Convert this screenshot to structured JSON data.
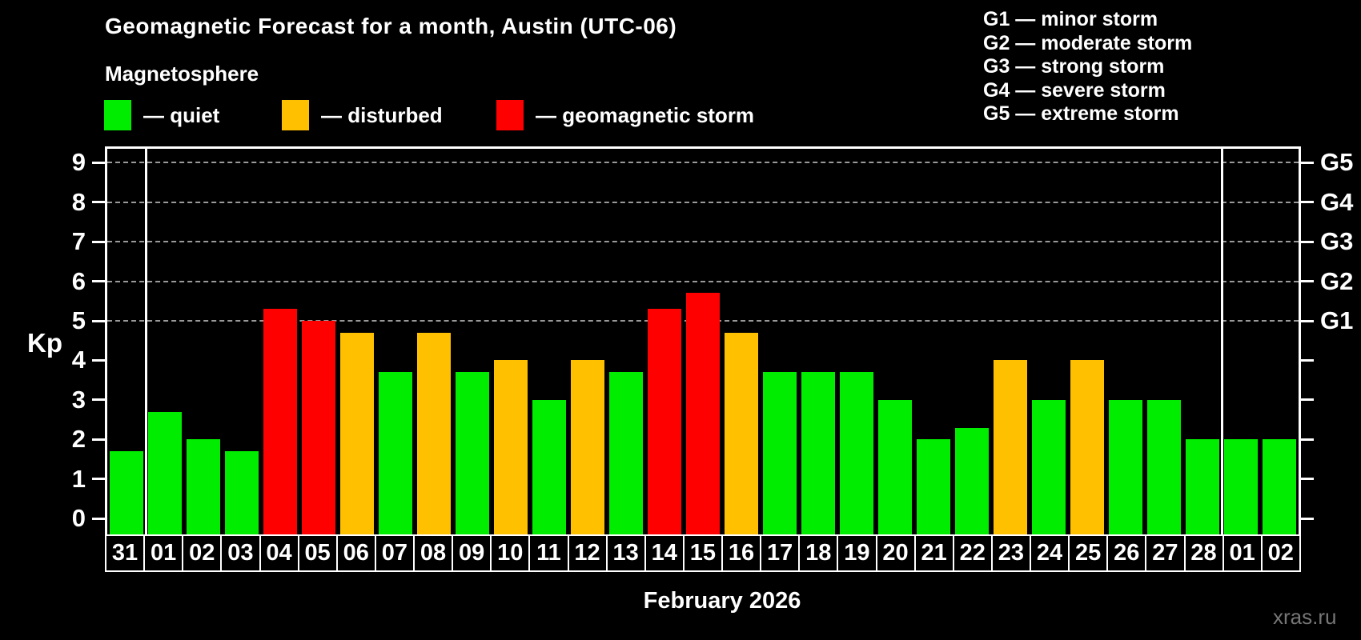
{
  "header": {
    "title": "Geomagnetic Forecast for a month, Austin (UTC-06)",
    "subtitle": "Magnetosphere",
    "legend": [
      {
        "key": "quiet",
        "label": "— quiet"
      },
      {
        "key": "disturbed",
        "label": "— disturbed"
      },
      {
        "key": "storm",
        "label": "— geomagnetic storm"
      }
    ],
    "g_scale_legend": [
      "G1 — minor storm",
      "G2 — moderate storm",
      "G3 — strong storm",
      "G4 — severe storm",
      "G5 — extreme storm"
    ]
  },
  "colors": {
    "quiet": "#00ed00",
    "disturbed": "#ffc000",
    "storm": "#ff0000",
    "grid": "#9a9a9a",
    "axis": "#ffffff",
    "watermark": "#767676"
  },
  "footer": {
    "caption": "February 2026",
    "watermark": "xras.ru"
  },
  "chart_data": {
    "type": "bar",
    "title": "Geomagnetic Forecast for a month, Austin (UTC-06)",
    "xlabel": "February 2026",
    "ylabel": "Kp",
    "ylim": [
      -0.4,
      9.35
    ],
    "y_ticks": [
      0,
      1,
      2,
      3,
      4,
      5,
      6,
      7,
      8,
      9
    ],
    "grid_levels_kp": [
      5,
      6,
      7,
      8,
      9
    ],
    "grid": "dashed-on-storm-levels-only",
    "legend_position": "top",
    "right_axis_labels": [
      {
        "label": "G1",
        "kp": 5
      },
      {
        "label": "G2",
        "kp": 6
      },
      {
        "label": "G3",
        "kp": 7
      },
      {
        "label": "G4",
        "kp": 8
      },
      {
        "label": "G5",
        "kp": 9
      }
    ],
    "month_separators_after_index": [
      0,
      28
    ],
    "series": [
      {
        "day": "31",
        "kp": 1.7,
        "status": "quiet"
      },
      {
        "day": "01",
        "kp": 2.7,
        "status": "quiet"
      },
      {
        "day": "02",
        "kp": 2.0,
        "status": "quiet"
      },
      {
        "day": "03",
        "kp": 1.7,
        "status": "quiet"
      },
      {
        "day": "04",
        "kp": 5.3,
        "status": "storm"
      },
      {
        "day": "05",
        "kp": 5.0,
        "status": "storm"
      },
      {
        "day": "06",
        "kp": 4.7,
        "status": "disturbed"
      },
      {
        "day": "07",
        "kp": 3.7,
        "status": "quiet"
      },
      {
        "day": "08",
        "kp": 4.7,
        "status": "disturbed"
      },
      {
        "day": "09",
        "kp": 3.7,
        "status": "quiet"
      },
      {
        "day": "10",
        "kp": 4.0,
        "status": "disturbed"
      },
      {
        "day": "11",
        "kp": 3.0,
        "status": "quiet"
      },
      {
        "day": "12",
        "kp": 4.0,
        "status": "disturbed"
      },
      {
        "day": "13",
        "kp": 3.7,
        "status": "quiet"
      },
      {
        "day": "14",
        "kp": 5.3,
        "status": "storm"
      },
      {
        "day": "15",
        "kp": 5.7,
        "status": "storm"
      },
      {
        "day": "16",
        "kp": 4.7,
        "status": "disturbed"
      },
      {
        "day": "17",
        "kp": 3.7,
        "status": "quiet"
      },
      {
        "day": "18",
        "kp": 3.7,
        "status": "quiet"
      },
      {
        "day": "19",
        "kp": 3.7,
        "status": "quiet"
      },
      {
        "day": "20",
        "kp": 3.0,
        "status": "quiet"
      },
      {
        "day": "21",
        "kp": 2.0,
        "status": "quiet"
      },
      {
        "day": "22",
        "kp": 2.3,
        "status": "quiet"
      },
      {
        "day": "23",
        "kp": 4.0,
        "status": "disturbed"
      },
      {
        "day": "24",
        "kp": 3.0,
        "status": "quiet"
      },
      {
        "day": "25",
        "kp": 4.0,
        "status": "disturbed"
      },
      {
        "day": "26",
        "kp": 3.0,
        "status": "quiet"
      },
      {
        "day": "27",
        "kp": 3.0,
        "status": "quiet"
      },
      {
        "day": "28",
        "kp": 2.0,
        "status": "quiet"
      },
      {
        "day": "01",
        "kp": 2.0,
        "status": "quiet"
      },
      {
        "day": "02",
        "kp": 2.0,
        "status": "quiet"
      }
    ]
  }
}
